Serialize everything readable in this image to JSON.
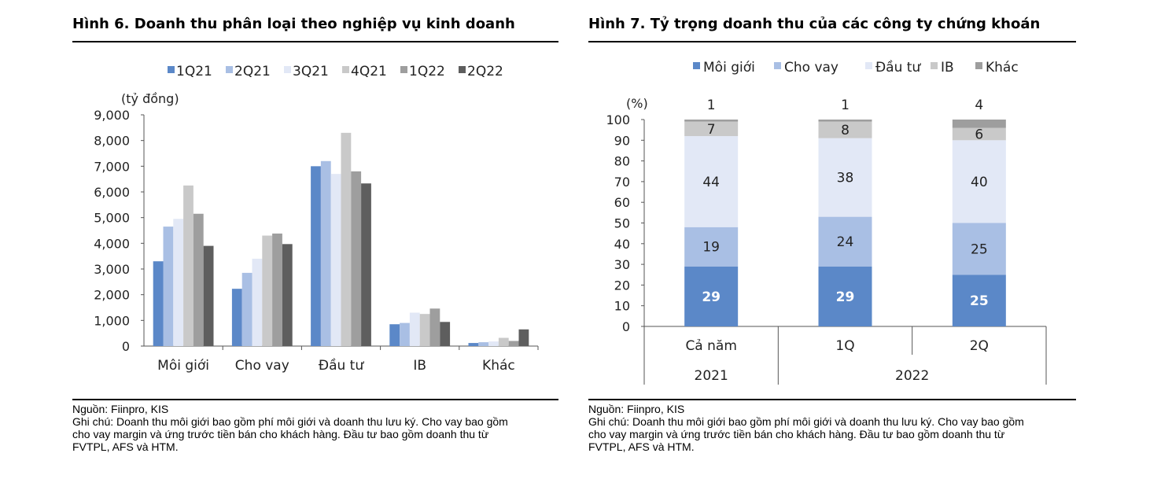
{
  "figure6": {
    "title": "Hình 6. Doanh thu phân loại theo nghiệp vụ kinh doanh",
    "source": "Nguồn: Fiinpro, KIS",
    "note_lines": [
      "Ghi chú: Doanh thu môi giới bao gồm phí môi giới và doanh thu lưu ký. Cho vay bao gồm",
      "cho vay margin và ứng trước tiền bán cho khách hàng. Đầu tư bao gồm doanh thu từ",
      "FVTPL, AFS và HTM."
    ]
  },
  "figure7": {
    "title": "Hình 7. Tỷ trọng doanh thu của các công ty chứng khoán",
    "source": "Nguồn: Fiinpro, KIS",
    "note_lines": [
      "Ghi chú: Doanh thu môi giới bao gồm phí môi giới và doanh thu lưu ký. Cho vay bao gồm",
      "cho vay margin và ứng trước tiền bán cho khách hàng. Đầu tư bao gồm doanh thu từ",
      "FVTPL, AFS và HTM."
    ]
  },
  "chart_data": [
    {
      "type": "bar",
      "ylabel": "(tỷ đồng)",
      "ylim": [
        0,
        9000
      ],
      "yticks": [
        "0",
        "1,000",
        "2,000",
        "3,000",
        "4,000",
        "5,000",
        "6,000",
        "7,000",
        "8,000",
        "9,000"
      ],
      "categories": [
        "Môi giới",
        "Cho vay",
        "Đầu tư",
        "IB",
        "Khác"
      ],
      "legend_position": "top",
      "series": [
        {
          "name": "1Q21",
          "color": "#5b88c8",
          "values": [
            3300,
            2230,
            7000,
            850,
            120
          ]
        },
        {
          "name": "2Q21",
          "color": "#a9bfe4",
          "values": [
            4650,
            2850,
            7200,
            900,
            150
          ]
        },
        {
          "name": "3Q21",
          "color": "#e2e8f6",
          "values": [
            4950,
            3400,
            6700,
            1300,
            180
          ]
        },
        {
          "name": "4Q21",
          "color": "#c9c9c9",
          "values": [
            6250,
            4300,
            8300,
            1250,
            320
          ]
        },
        {
          "name": "1Q22",
          "color": "#9e9e9e",
          "values": [
            5150,
            4380,
            6800,
            1460,
            200
          ]
        },
        {
          "name": "2Q22",
          "color": "#5e5e5e",
          "values": [
            3900,
            3970,
            6330,
            940,
            650
          ]
        }
      ],
      "grid": false
    },
    {
      "type": "bar",
      "stacked": true,
      "ylabel": "(%)",
      "ylim": [
        0,
        100
      ],
      "yticks": [
        "0",
        "10",
        "20",
        "30",
        "40",
        "50",
        "60",
        "70",
        "80",
        "90",
        "100"
      ],
      "categories": [
        "Cả năm",
        "1Q",
        "2Q"
      ],
      "group_labels": [
        {
          "label": "2021",
          "span": [
            0,
            0
          ]
        },
        {
          "label": "2022",
          "span": [
            1,
            2
          ]
        }
      ],
      "legend_position": "top",
      "series": [
        {
          "name": "Môi giới",
          "color": "#5b88c8",
          "values": [
            29,
            29,
            25
          ],
          "labels": [
            "29",
            "29",
            "25"
          ]
        },
        {
          "name": "Cho vay",
          "color": "#a9bfe4",
          "values": [
            19,
            24,
            25
          ],
          "labels": [
            "19",
            "24",
            "25"
          ]
        },
        {
          "name": "Đầu tư",
          "color": "#e2e8f6",
          "values": [
            44,
            38,
            40
          ],
          "labels": [
            "44",
            "38",
            "40"
          ]
        },
        {
          "name": "IB",
          "color": "#c9c9c9",
          "values": [
            7,
            8,
            6
          ],
          "labels": [
            "7",
            "8",
            "6"
          ]
        },
        {
          "name": "Khác",
          "color": "#9e9e9e",
          "values": [
            1,
            1,
            4
          ],
          "labels": [
            "1",
            "1",
            "4"
          ]
        }
      ],
      "grid": false
    }
  ]
}
